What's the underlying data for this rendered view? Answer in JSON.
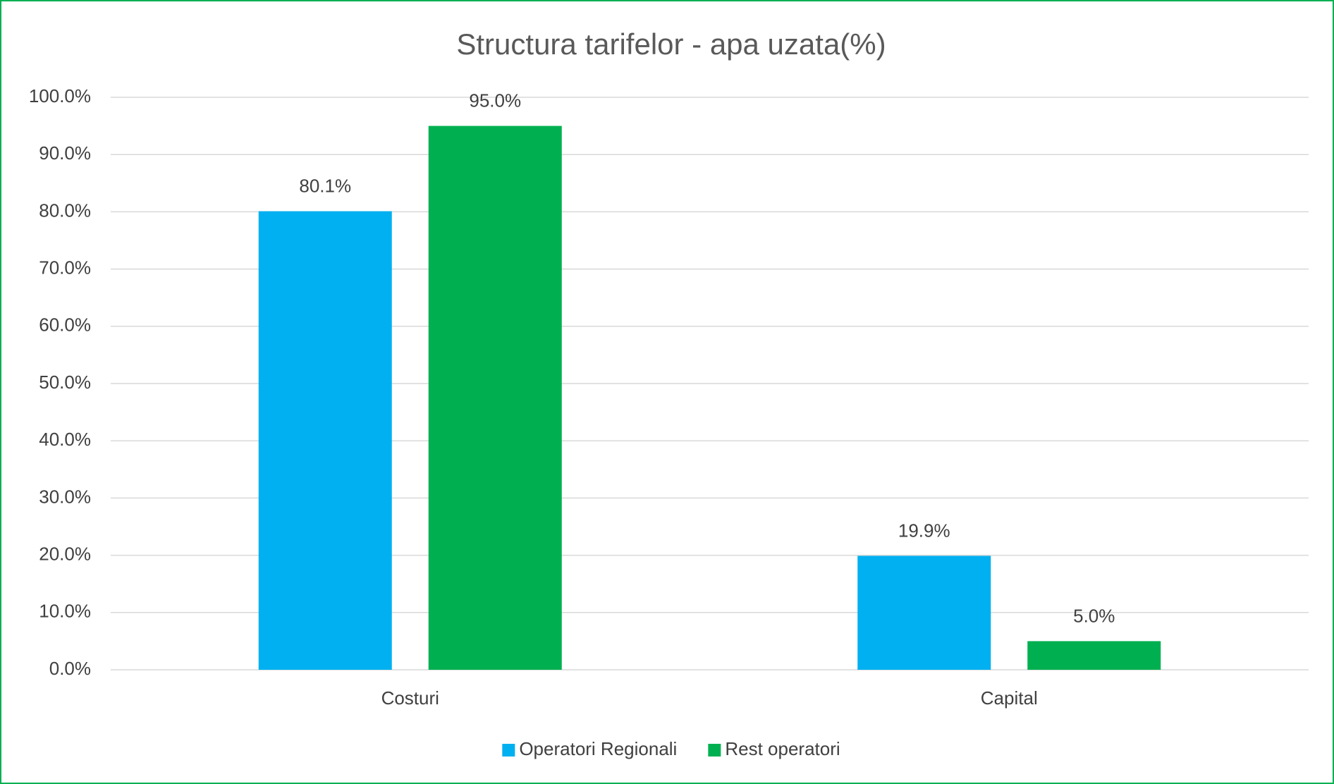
{
  "chart_data": {
    "type": "bar",
    "title": "Structura tarifelor - apa uzata(%)",
    "categories": [
      "Costuri",
      "Capital"
    ],
    "series": [
      {
        "name": "Operatori Regionali",
        "color": "#00b0f0",
        "values": [
          80.1,
          19.9
        ],
        "value_labels": [
          "80.1%",
          "19.9%"
        ]
      },
      {
        "name": "Rest operatori",
        "color": "#00b050",
        "values": [
          95.0,
          5.0
        ],
        "value_labels": [
          "95.0%",
          "5.0%"
        ]
      }
    ],
    "ylim": [
      0,
      100
    ],
    "yticks": [
      {
        "value": 0,
        "label": "0.0%"
      },
      {
        "value": 10,
        "label": "10.0%"
      },
      {
        "value": 20,
        "label": "20.0%"
      },
      {
        "value": 30,
        "label": "30.0%"
      },
      {
        "value": 40,
        "label": "40.0%"
      },
      {
        "value": 50,
        "label": "50.0%"
      },
      {
        "value": 60,
        "label": "60.0%"
      },
      {
        "value": 70,
        "label": "70.0%"
      },
      {
        "value": 80,
        "label": "80.0%"
      },
      {
        "value": 90,
        "label": "90.0%"
      },
      {
        "value": 100,
        "label": "100.0%"
      }
    ],
    "grid": true,
    "legend": "bottom"
  }
}
